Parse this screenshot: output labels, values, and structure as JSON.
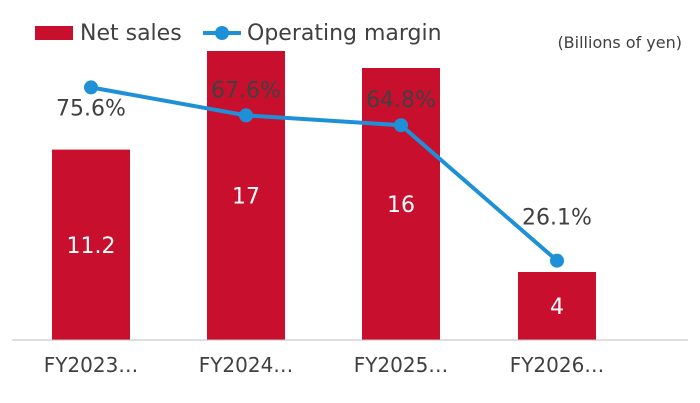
{
  "chart_data": {
    "type": "bar",
    "categories": [
      "FY2023…",
      "FY2024…",
      "FY2025…",
      "FY2026…"
    ],
    "unit_note": "(Billions of yen)",
    "series": [
      {
        "name": "Net sales",
        "type": "bar",
        "color": "#C8102E",
        "values": [
          11.2,
          17,
          16,
          4
        ],
        "labels": [
          "11.2",
          "17",
          "16",
          "4"
        ]
      },
      {
        "name": "Operating margin",
        "type": "line",
        "color": "#1E90D8",
        "values": [
          75.6,
          67.6,
          64.8,
          26.1
        ],
        "labels": [
          "75.6%",
          "67.6%",
          "64.8%",
          "26.1%"
        ]
      }
    ],
    "bar_axis_range": [
      0,
      20
    ],
    "line_axis_range": [
      0,
      100
    ],
    "legend_position": "top-left",
    "grid": false
  }
}
